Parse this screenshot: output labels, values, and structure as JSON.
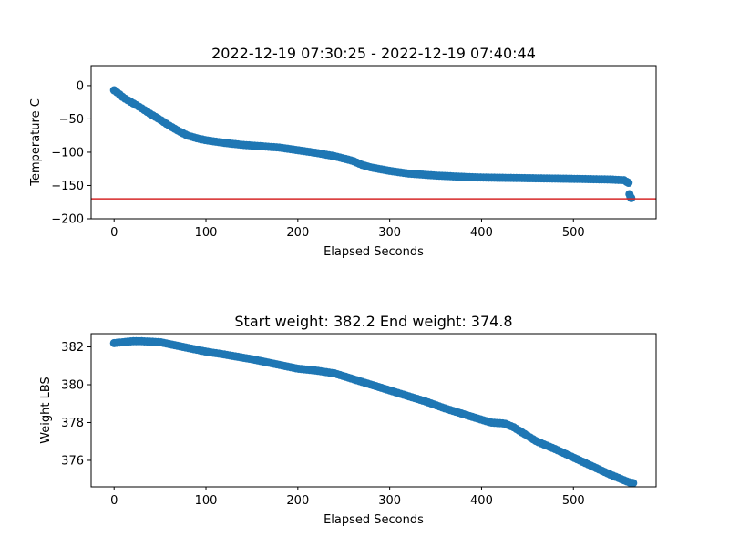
{
  "chart_data": [
    {
      "type": "scatter",
      "title": "2022-12-19 07:30:25 - 2022-12-19 07:40:44",
      "xlabel": "Elapsed Seconds",
      "ylabel": "Temperature C",
      "xlim": [
        -25,
        590
      ],
      "ylim": [
        -200,
        30
      ],
      "xticks": [
        0,
        100,
        200,
        300,
        400,
        500
      ],
      "yticks": [
        0,
        -50,
        -100,
        -150,
        -200
      ],
      "grid": false,
      "marker_color": "#1f77b4",
      "x_step": 3,
      "curve": [
        [
          0,
          -7
        ],
        [
          5,
          -12
        ],
        [
          10,
          -18
        ],
        [
          20,
          -26
        ],
        [
          30,
          -34
        ],
        [
          40,
          -43
        ],
        [
          50,
          -51
        ],
        [
          60,
          -60
        ],
        [
          70,
          -68
        ],
        [
          80,
          -75
        ],
        [
          90,
          -79
        ],
        [
          100,
          -82
        ],
        [
          120,
          -86
        ],
        [
          140,
          -89
        ],
        [
          160,
          -91
        ],
        [
          180,
          -93
        ],
        [
          200,
          -97
        ],
        [
          220,
          -101
        ],
        [
          240,
          -106
        ],
        [
          260,
          -113
        ],
        [
          270,
          -119
        ],
        [
          280,
          -123
        ],
        [
          300,
          -128
        ],
        [
          320,
          -132
        ],
        [
          350,
          -135
        ],
        [
          380,
          -137
        ],
        [
          400,
          -138
        ],
        [
          450,
          -139
        ],
        [
          500,
          -140
        ],
        [
          540,
          -141
        ],
        [
          555,
          -142
        ],
        [
          560,
          -146
        ]
      ],
      "extra_points": [
        [
          561,
          -163
        ],
        [
          562,
          -167
        ],
        [
          563,
          -169
        ]
      ],
      "hline": {
        "y": -170,
        "color": "#d62728"
      }
    },
    {
      "type": "scatter",
      "title": "Start weight: 382.2 End weight: 374.8",
      "xlabel": "Elapsed Seconds",
      "ylabel": "Weight LBS",
      "xlim": [
        -25,
        590
      ],
      "ylim": [
        374.6,
        382.7
      ],
      "xticks": [
        0,
        100,
        200,
        300,
        400,
        500
      ],
      "yticks": [
        376,
        378,
        380,
        382
      ],
      "grid": false,
      "marker_color": "#1f77b4",
      "x_step": 3,
      "curve": [
        [
          0,
          382.2
        ],
        [
          10,
          382.25
        ],
        [
          20,
          382.3
        ],
        [
          30,
          382.3
        ],
        [
          50,
          382.25
        ],
        [
          60,
          382.15
        ],
        [
          80,
          381.95
        ],
        [
          100,
          381.75
        ],
        [
          120,
          381.6
        ],
        [
          150,
          381.35
        ],
        [
          180,
          381.05
        ],
        [
          200,
          380.85
        ],
        [
          220,
          380.75
        ],
        [
          240,
          380.6
        ],
        [
          260,
          380.3
        ],
        [
          280,
          380.0
        ],
        [
          300,
          379.7
        ],
        [
          320,
          379.4
        ],
        [
          340,
          379.1
        ],
        [
          360,
          378.75
        ],
        [
          380,
          378.45
        ],
        [
          400,
          378.15
        ],
        [
          410,
          378.0
        ],
        [
          425,
          377.95
        ],
        [
          435,
          377.75
        ],
        [
          450,
          377.3
        ],
        [
          460,
          377.0
        ],
        [
          480,
          376.6
        ],
        [
          500,
          376.15
        ],
        [
          520,
          375.7
        ],
        [
          540,
          375.25
        ],
        [
          560,
          374.85
        ],
        [
          565,
          374.8
        ]
      ]
    }
  ]
}
